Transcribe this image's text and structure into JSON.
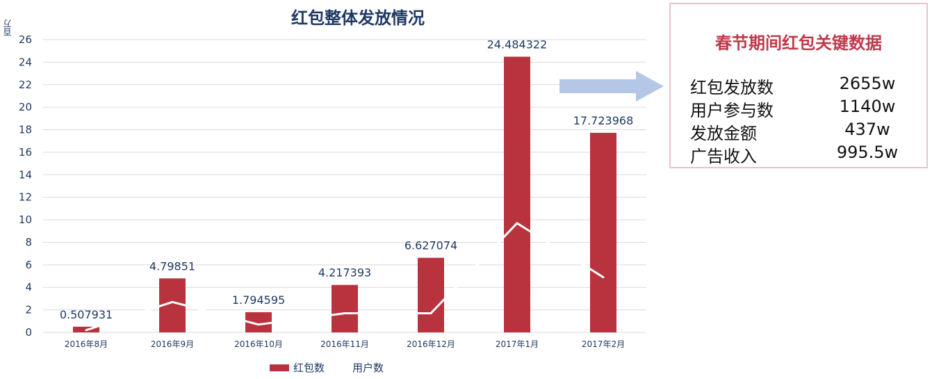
{
  "chart_data": {
    "type": "bar",
    "title": "红包整体发放情况",
    "ylabel": "百万",
    "ylim": [
      0,
      26
    ],
    "yticks": [
      0,
      2,
      4,
      6,
      8,
      10,
      12,
      14,
      16,
      18,
      20,
      22,
      24,
      26
    ],
    "categories": [
      "2016年8月",
      "2016年9月",
      "2016年10月",
      "2016年11月",
      "2016年12月",
      "2017年1月",
      "2017年2月"
    ],
    "series": [
      {
        "name": "红包数",
        "type": "bar",
        "color": "#b8333d",
        "values": [
          0.507931,
          4.79851,
          1.794595,
          4.217393,
          6.627074,
          24.484322,
          17.723968
        ],
        "labels": [
          "0.507931",
          "4.79851",
          "1.794595",
          "4.217393",
          "6.627074",
          "24.484322",
          "17.723968"
        ]
      },
      {
        "name": "用户数",
        "type": "line",
        "color": "#ffffff",
        "values": [
          0.2,
          2.7,
          0.7,
          1.7,
          1.7,
          9.7,
          4.9
        ]
      }
    ],
    "grid": true,
    "legend": "bottom"
  },
  "summary": {
    "title": "春节期间红包关键数据",
    "rows": [
      {
        "label": "红包发放数",
        "value": "2655w"
      },
      {
        "label": "用户参与数",
        "value": "1140w"
      },
      {
        "label": "发放金额",
        "value": "437w"
      },
      {
        "label": "广告收入",
        "value": "995.5w"
      }
    ]
  },
  "colors": {
    "title": "#1f3864",
    "axis_text": "#1f3864",
    "bar": "#b8333d",
    "summary_title": "#c0394b",
    "arrow": "#b4c7e7"
  }
}
